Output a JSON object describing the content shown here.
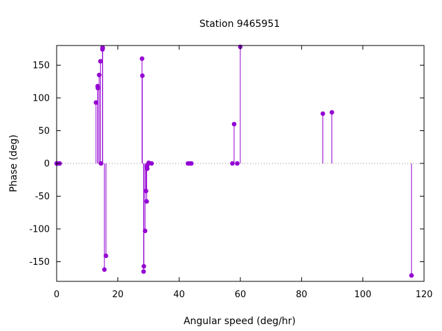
{
  "chart_data": {
    "type": "scatter",
    "style": "impulses-with-points",
    "title": "Station 9465951",
    "xlabel": "Angular speed (deg/hr)",
    "ylabel": "Phase (deg)",
    "xlim": [
      0,
      120
    ],
    "ylim": [
      -180,
      180
    ],
    "xticks": [
      0,
      20,
      40,
      60,
      80,
      100,
      120
    ],
    "yticks": [
      -150,
      -100,
      -50,
      0,
      50,
      100,
      150
    ],
    "grid": false,
    "zero_line": true,
    "series": [
      {
        "color": "#9400d3",
        "x": [
          0.0,
          0.04,
          0.08,
          0.5,
          0.6,
          1.0,
          12.85,
          13.4,
          13.47,
          13.9,
          14.3,
          14.5,
          14.96,
          15.0,
          15.04,
          15.6,
          16.1,
          27.9,
          28.0,
          28.4,
          28.5,
          28.9,
          29.2,
          29.4,
          29.5,
          29.6,
          30.0,
          30.08,
          31.0,
          42.9,
          43.5,
          44.0,
          57.4,
          57.97,
          58.98,
          59.98,
          86.95,
          89.9,
          115.9
        ],
        "y": [
          0,
          0,
          0,
          0,
          0,
          0,
          93,
          118,
          115,
          135,
          156,
          0,
          174,
          177,
          176,
          -162,
          -141,
          160,
          134,
          -165,
          -157,
          -103,
          -42,
          -58,
          -5,
          -8,
          0,
          1,
          0,
          0,
          0,
          0,
          0,
          60,
          0,
          178,
          76,
          78,
          -171
        ]
      }
    ]
  }
}
